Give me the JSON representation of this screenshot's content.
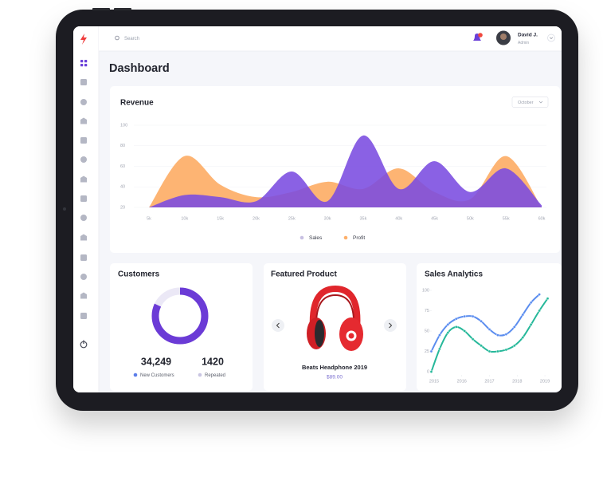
{
  "topbar": {
    "search_placeholder": "Search",
    "user": {
      "name": "David J.",
      "role": "Admin"
    }
  },
  "page_title": "Dashboard",
  "revenue": {
    "title": "Revenue",
    "period": "October",
    "chart": {
      "type": "area",
      "categories": [
        "5k",
        "10k",
        "15k",
        "20k",
        "25k",
        "30k",
        "35k",
        "40k",
        "45k",
        "50k",
        "55k",
        "60k"
      ],
      "ylim": [
        20,
        100
      ],
      "yticks": [
        20,
        40,
        60,
        80,
        100
      ],
      "grid": true,
      "series": [
        {
          "name": "Sales",
          "color": "#7a4be0",
          "values": [
            20,
            32,
            30,
            26,
            55,
            26,
            90,
            38,
            65,
            35,
            58,
            22
          ]
        },
        {
          "name": "Profit",
          "color": "#fdb06b",
          "values": [
            20,
            70,
            42,
            30,
            35,
            45,
            38,
            58,
            35,
            28,
            70,
            20
          ]
        }
      ]
    }
  },
  "customers": {
    "title": "Customers",
    "chart": {
      "type": "donut",
      "values": [
        82,
        18
      ],
      "colors": [
        "#6b3bd6",
        "#ebe8f6"
      ]
    },
    "stats": [
      {
        "value": "34,249",
        "label": "New Customers",
        "color": "#5b7de9"
      },
      {
        "value": "1420",
        "label": "Repeated",
        "color": "#c9c5e2"
      }
    ]
  },
  "featured": {
    "title": "Featured Product",
    "name": "Beats Headphone 2019",
    "price": "$89.00"
  },
  "sales_analytics": {
    "title": "Sales Analytics",
    "chart": {
      "type": "line",
      "xlim": [
        2014.8,
        2019.2
      ],
      "xticks": [
        2015,
        2016,
        2017,
        2018,
        2019
      ],
      "ylim": [
        0,
        100
      ],
      "yticks": [
        0,
        25,
        50,
        75,
        100
      ],
      "series": [
        {
          "color": "#5b8def",
          "x": [
            2014.9,
            2015.2,
            2015.5,
            2015.8,
            2016.1,
            2016.4,
            2016.7,
            2017,
            2017.3,
            2017.6,
            2017.9,
            2018.2,
            2018.5,
            2018.8
          ],
          "values": [
            25,
            45,
            58,
            65,
            68,
            68,
            62,
            52,
            45,
            46,
            55,
            70,
            85,
            95
          ]
        },
        {
          "color": "#26b89a",
          "x": [
            2014.9,
            2015.2,
            2015.5,
            2015.8,
            2016.1,
            2016.4,
            2016.7,
            2017,
            2017.3,
            2017.6,
            2017.9,
            2018.2,
            2018.5,
            2018.8,
            2019.1
          ],
          "values": [
            0,
            28,
            48,
            55,
            50,
            40,
            32,
            25,
            25,
            27,
            32,
            42,
            58,
            75,
            90
          ]
        }
      ]
    }
  }
}
